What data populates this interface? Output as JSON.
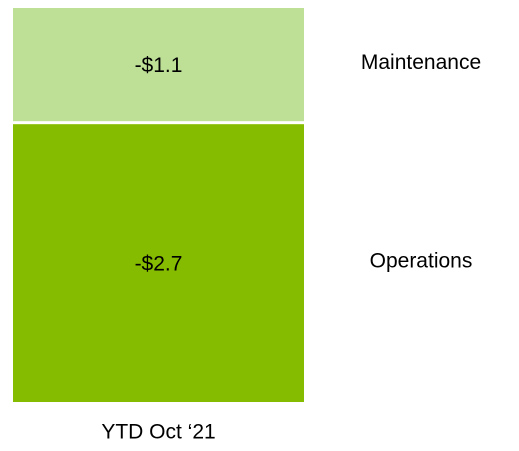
{
  "chart_data": {
    "type": "stacked_bar",
    "categories": [
      "YTD Oct ‘21"
    ],
    "series": [
      {
        "name": "Operations",
        "color": "#86bc00",
        "values": [
          -2.7
        ],
        "value_labels": [
          "-$2.7"
        ]
      },
      {
        "name": "Maintenance",
        "color": "#bde096",
        "values": [
          -1.1
        ],
        "value_labels": [
          "-$1.1"
        ]
      }
    ]
  }
}
